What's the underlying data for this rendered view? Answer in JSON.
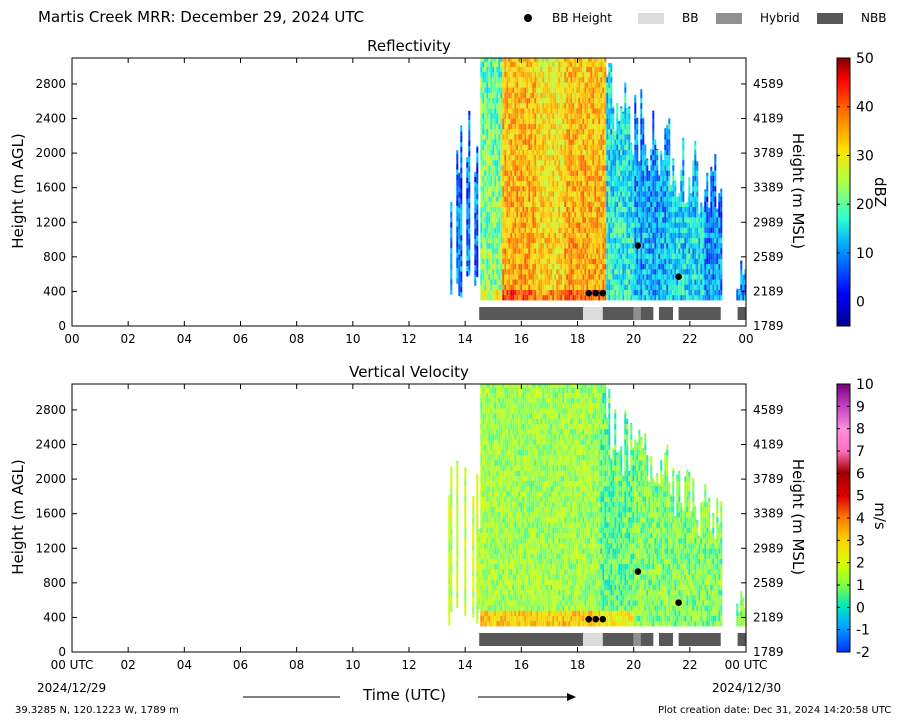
{
  "header": {
    "title": "Martis Creek MRR:  December 29, 2024 UTC"
  },
  "legend": {
    "bb_height": "BB Height",
    "bb": "BB",
    "hybrid": "Hybrid",
    "nbb": "NBB",
    "colors": {
      "bb": "#dcdcdc",
      "hybrid": "#909090",
      "nbb": "#585858"
    }
  },
  "chart_data": [
    {
      "type": "heatmap",
      "title": "Reflectivity",
      "ylabel": "Height (m AGL)",
      "ylabel_right": "Height (m MSL)",
      "ylim": [
        0,
        3100
      ],
      "xlim": [
        0,
        24
      ],
      "x_ticks": [
        "00",
        "02",
        "04",
        "06",
        "08",
        "10",
        "12",
        "14",
        "16",
        "18",
        "20",
        "22",
        "00"
      ],
      "y_ticks": [
        "0",
        "400",
        "800",
        "1200",
        "1600",
        "2000",
        "2400",
        "2800"
      ],
      "y_ticks_right": [
        "1789",
        "2189",
        "2589",
        "2989",
        "3389",
        "3789",
        "4189",
        "4589"
      ],
      "colorbar": {
        "label": "dBZ",
        "ticks": [
          "0",
          "10",
          "20",
          "30",
          "40",
          "50"
        ],
        "range": [
          -5,
          50
        ]
      },
      "bb_height_points": [
        {
          "x": 18.4,
          "y": 380
        },
        {
          "x": 18.65,
          "y": 380
        },
        {
          "x": 18.9,
          "y": 380
        },
        {
          "x": 20.15,
          "y": 930
        },
        {
          "x": 21.6,
          "y": 570
        }
      ],
      "bb_type_bars": [
        {
          "from": 14.5,
          "to": 18.2,
          "type": "NBB"
        },
        {
          "from": 18.2,
          "to": 18.9,
          "type": "BB"
        },
        {
          "from": 18.9,
          "to": 20.0,
          "type": "NBB"
        },
        {
          "from": 20.0,
          "to": 20.25,
          "type": "Hybrid"
        },
        {
          "from": 20.25,
          "to": 20.7,
          "type": "NBB"
        },
        {
          "from": 20.9,
          "to": 21.4,
          "type": "NBB"
        },
        {
          "from": 21.6,
          "to": 23.1,
          "type": "NBB"
        },
        {
          "from": 23.7,
          "to": 24.0,
          "type": "NBB"
        }
      ]
    },
    {
      "type": "heatmap",
      "title": "Vertical Velocity",
      "ylabel": "Height (m AGL)",
      "ylabel_right": "Height (m MSL)",
      "ylim": [
        0,
        3100
      ],
      "xlim": [
        0,
        24
      ],
      "x_ticks": [
        "00 UTC",
        "02",
        "04",
        "06",
        "08",
        "10",
        "12",
        "14",
        "16",
        "18",
        "20",
        "22",
        "00 UTC"
      ],
      "x_sub_left": "2024/12/29",
      "x_sub_right": "2024/12/30",
      "xlabel": "Time (UTC)",
      "y_ticks": [
        "0",
        "400",
        "800",
        "1200",
        "1600",
        "2000",
        "2400",
        "2800"
      ],
      "y_ticks_right": [
        "1789",
        "2189",
        "2589",
        "2989",
        "3389",
        "3789",
        "4189",
        "4589"
      ],
      "colorbar": {
        "label": "m/s",
        "ticks": [
          "-2",
          "-1",
          "0",
          "1",
          "2",
          "3",
          "4",
          "5",
          "6",
          "7",
          "8",
          "9",
          "10"
        ],
        "range": [
          -2,
          10
        ]
      },
      "bb_height_points": [
        {
          "x": 18.4,
          "y": 380
        },
        {
          "x": 18.65,
          "y": 380
        },
        {
          "x": 18.9,
          "y": 380
        },
        {
          "x": 20.15,
          "y": 930
        },
        {
          "x": 21.6,
          "y": 570
        }
      ],
      "bb_type_bars": [
        {
          "from": 14.5,
          "to": 18.2,
          "type": "NBB"
        },
        {
          "from": 18.2,
          "to": 18.9,
          "type": "BB"
        },
        {
          "from": 18.9,
          "to": 20.0,
          "type": "NBB"
        },
        {
          "from": 20.0,
          "to": 20.25,
          "type": "Hybrid"
        },
        {
          "from": 20.25,
          "to": 20.7,
          "type": "NBB"
        },
        {
          "from": 20.9,
          "to": 21.4,
          "type": "NBB"
        },
        {
          "from": 21.6,
          "to": 23.1,
          "type": "NBB"
        },
        {
          "from": 23.7,
          "to": 24.0,
          "type": "NBB"
        }
      ]
    }
  ],
  "footer": {
    "location": "39.3285 N, 120.1223 W, 1789 m",
    "creation": "Plot creation date: Dec 31, 2024 14:20:58 UTC"
  }
}
